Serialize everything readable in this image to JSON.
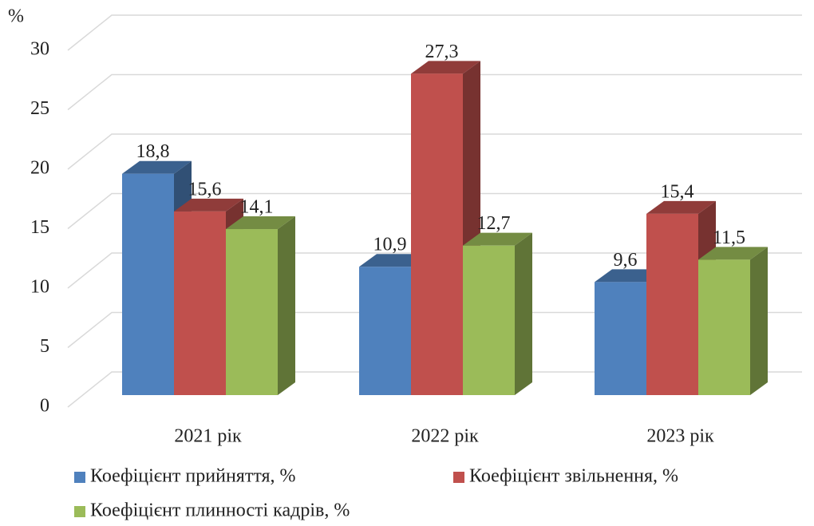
{
  "chart_data": {
    "type": "bar3d",
    "y_axis_label": "%",
    "categories": [
      "2021 рік",
      "2022 рік",
      "2023 рік"
    ],
    "series": [
      {
        "name": "Коефіцієнт прийняття, %",
        "color": "#4f81bd",
        "values": [
          18.8,
          10.9,
          9.6
        ],
        "value_labels": [
          "18,8",
          "10,9",
          "9,6"
        ]
      },
      {
        "name": "Коефіцієнт звільнення, %",
        "color": "#c0504d",
        "values": [
          15.6,
          27.3,
          15.4
        ],
        "value_labels": [
          "15,6",
          "27,3",
          "15,4"
        ]
      },
      {
        "name": "Коефіцієнт плинності кадрів, %",
        "color": "#9bbb59",
        "values": [
          14.1,
          12.7,
          11.5
        ],
        "value_labels": [
          "14,1",
          "12,7",
          "11,5"
        ]
      }
    ],
    "ylim": [
      0,
      30
    ],
    "yticks": [
      0,
      5,
      10,
      15,
      20,
      25,
      30
    ],
    "grid": true
  }
}
